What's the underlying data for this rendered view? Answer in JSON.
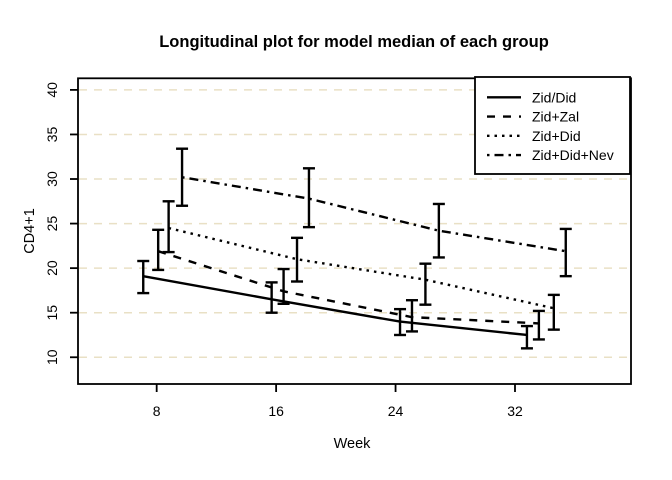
{
  "chart_data": {
    "type": "line",
    "title": "Longitudinal plot for model median of each group",
    "xlabel": "Week",
    "ylabel": "CD4+1",
    "x_ticks": [
      8,
      16,
      24,
      32
    ],
    "y_ticks": [
      10,
      15,
      20,
      25,
      30,
      35,
      40
    ],
    "xlim": [
      2.73,
      39.77
    ],
    "ylim": [
      7.0,
      41.3
    ],
    "grid": {
      "horizontal": true,
      "style": "dashed",
      "color": "#e9e0c5"
    },
    "legend_position": "top-right",
    "error_bars": true,
    "line_color": "#000000",
    "series": [
      {
        "name": "Zid/Did",
        "linetype": "solid",
        "color": "#000000",
        "x": [
          7.1,
          15.7,
          24.3,
          32.8
        ],
        "median": [
          19.1,
          16.5,
          14.0,
          12.5
        ],
        "lower": [
          17.2,
          15.0,
          12.5,
          11.0
        ],
        "upper": [
          20.8,
          18.4,
          15.4,
          13.5
        ]
      },
      {
        "name": "Zid+Zal",
        "linetype": "dashed",
        "color": "#000000",
        "x": [
          8.1,
          16.5,
          25.1,
          33.6
        ],
        "median": [
          21.9,
          17.4,
          14.5,
          13.8
        ],
        "lower": [
          19.8,
          16.0,
          12.9,
          12.0
        ],
        "upper": [
          24.3,
          19.9,
          16.4,
          15.2
        ]
      },
      {
        "name": "Zid+Did",
        "linetype": "dotted",
        "color": "#000000",
        "x": [
          8.8,
          17.4,
          26.0,
          34.6
        ],
        "median": [
          24.5,
          21.0,
          18.7,
          15.5
        ],
        "lower": [
          21.8,
          18.5,
          15.9,
          13.1
        ],
        "upper": [
          27.5,
          23.4,
          20.5,
          17.0
        ]
      },
      {
        "name": "Zid+Did+Nev",
        "linetype": "dashdot",
        "color": "#000000",
        "x": [
          9.7,
          18.2,
          26.9,
          35.4
        ],
        "median": [
          30.2,
          27.8,
          24.2,
          21.9
        ],
        "lower": [
          27.0,
          24.6,
          21.2,
          19.1
        ],
        "upper": [
          33.4,
          31.2,
          27.2,
          24.4
        ]
      }
    ]
  }
}
